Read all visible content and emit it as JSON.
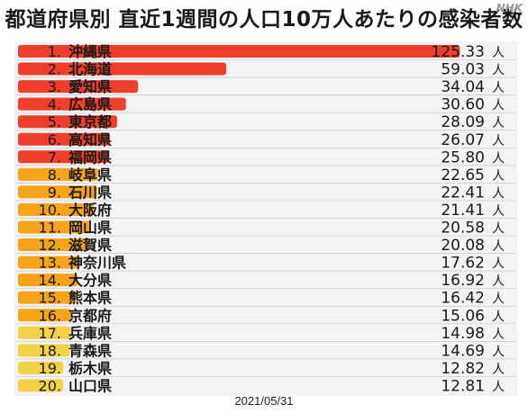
{
  "title": "都道府県別 直近1週間の人口10万人あたりの感染者数",
  "watermark": "NHK",
  "date": "2021/05/31",
  "unit": "人",
  "colors": {
    "red": "#f03e2c",
    "orange": "#f5a318",
    "yellow": "#f3d24a",
    "panel": "#f3f3f3",
    "separator": "#c8c8c8"
  },
  "chart_data": {
    "type": "bar",
    "orientation": "horizontal",
    "title": "都道府県別 直近1週間の人口10万人あたりの感染者数",
    "unit": "人",
    "xlim": [
      0,
      127
    ],
    "categories": [
      "沖縄県",
      "北海道",
      "愛知県",
      "広島県",
      "東京都",
      "高知県",
      "福岡県",
      "岐阜県",
      "石川県",
      "大阪府",
      "岡山県",
      "滋賀県",
      "神奈川県",
      "大分県",
      "熊本県",
      "京都府",
      "兵庫県",
      "青森県",
      "栃木県",
      "山口県"
    ],
    "ranks": [
      "1.",
      "2.",
      "3.",
      "4.",
      "5.",
      "6.",
      "7.",
      "8.",
      "9.",
      "10.",
      "11.",
      "12.",
      "13.",
      "14.",
      "15.",
      "16.",
      "17.",
      "18.",
      "19.",
      "20."
    ],
    "values": [
      125.33,
      59.03,
      34.04,
      30.6,
      28.09,
      26.07,
      25.8,
      22.65,
      22.41,
      21.41,
      20.58,
      20.08,
      17.62,
      16.92,
      16.42,
      15.06,
      14.98,
      14.69,
      12.82,
      12.81
    ],
    "value_labels": [
      "125.33",
      "59.03",
      "34.04",
      "30.60",
      "28.09",
      "26.07",
      "25.80",
      "22.65",
      "22.41",
      "21.41",
      "20.58",
      "20.08",
      "17.62",
      "16.92",
      "16.42",
      "15.06",
      "14.98",
      "14.69",
      "12.82",
      "12.81"
    ],
    "color_group": [
      "red",
      "red",
      "red",
      "red",
      "red",
      "red",
      "red",
      "orange",
      "orange",
      "orange",
      "orange",
      "orange",
      "orange",
      "orange",
      "orange",
      "orange",
      "yellow",
      "yellow",
      "yellow",
      "yellow"
    ]
  }
}
